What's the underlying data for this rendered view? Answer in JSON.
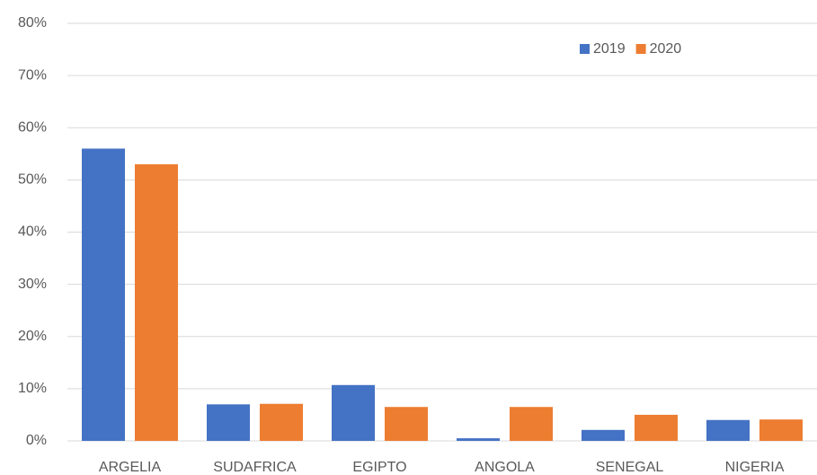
{
  "chart_data": {
    "type": "bar",
    "categories": [
      "ARGELIA",
      "SUDAFRICA",
      "EGIPTO",
      "ANGOLA",
      "SENEGAL",
      "NIGERIA"
    ],
    "series": [
      {
        "name": "2019",
        "color": "#4472c4",
        "values": [
          56,
          7,
          10.7,
          0.5,
          2.1,
          4
        ]
      },
      {
        "name": "2020",
        "color": "#ed7d31",
        "values": [
          53,
          7.1,
          6.5,
          6.5,
          5,
          4.1
        ]
      }
    ],
    "ylim": [
      0,
      80
    ],
    "yticks": [
      {
        "value": 0,
        "label": "0%"
      },
      {
        "value": 10,
        "label": "10%"
      },
      {
        "value": 20,
        "label": "20%"
      },
      {
        "value": 30,
        "label": "30%"
      },
      {
        "value": 40,
        "label": "40%"
      },
      {
        "value": 50,
        "label": "50%"
      },
      {
        "value": 60,
        "label": "60%"
      },
      {
        "value": 70,
        "label": "70%"
      },
      {
        "value": 80,
        "label": "80%"
      }
    ],
    "grid": true,
    "legend": "upper right"
  }
}
